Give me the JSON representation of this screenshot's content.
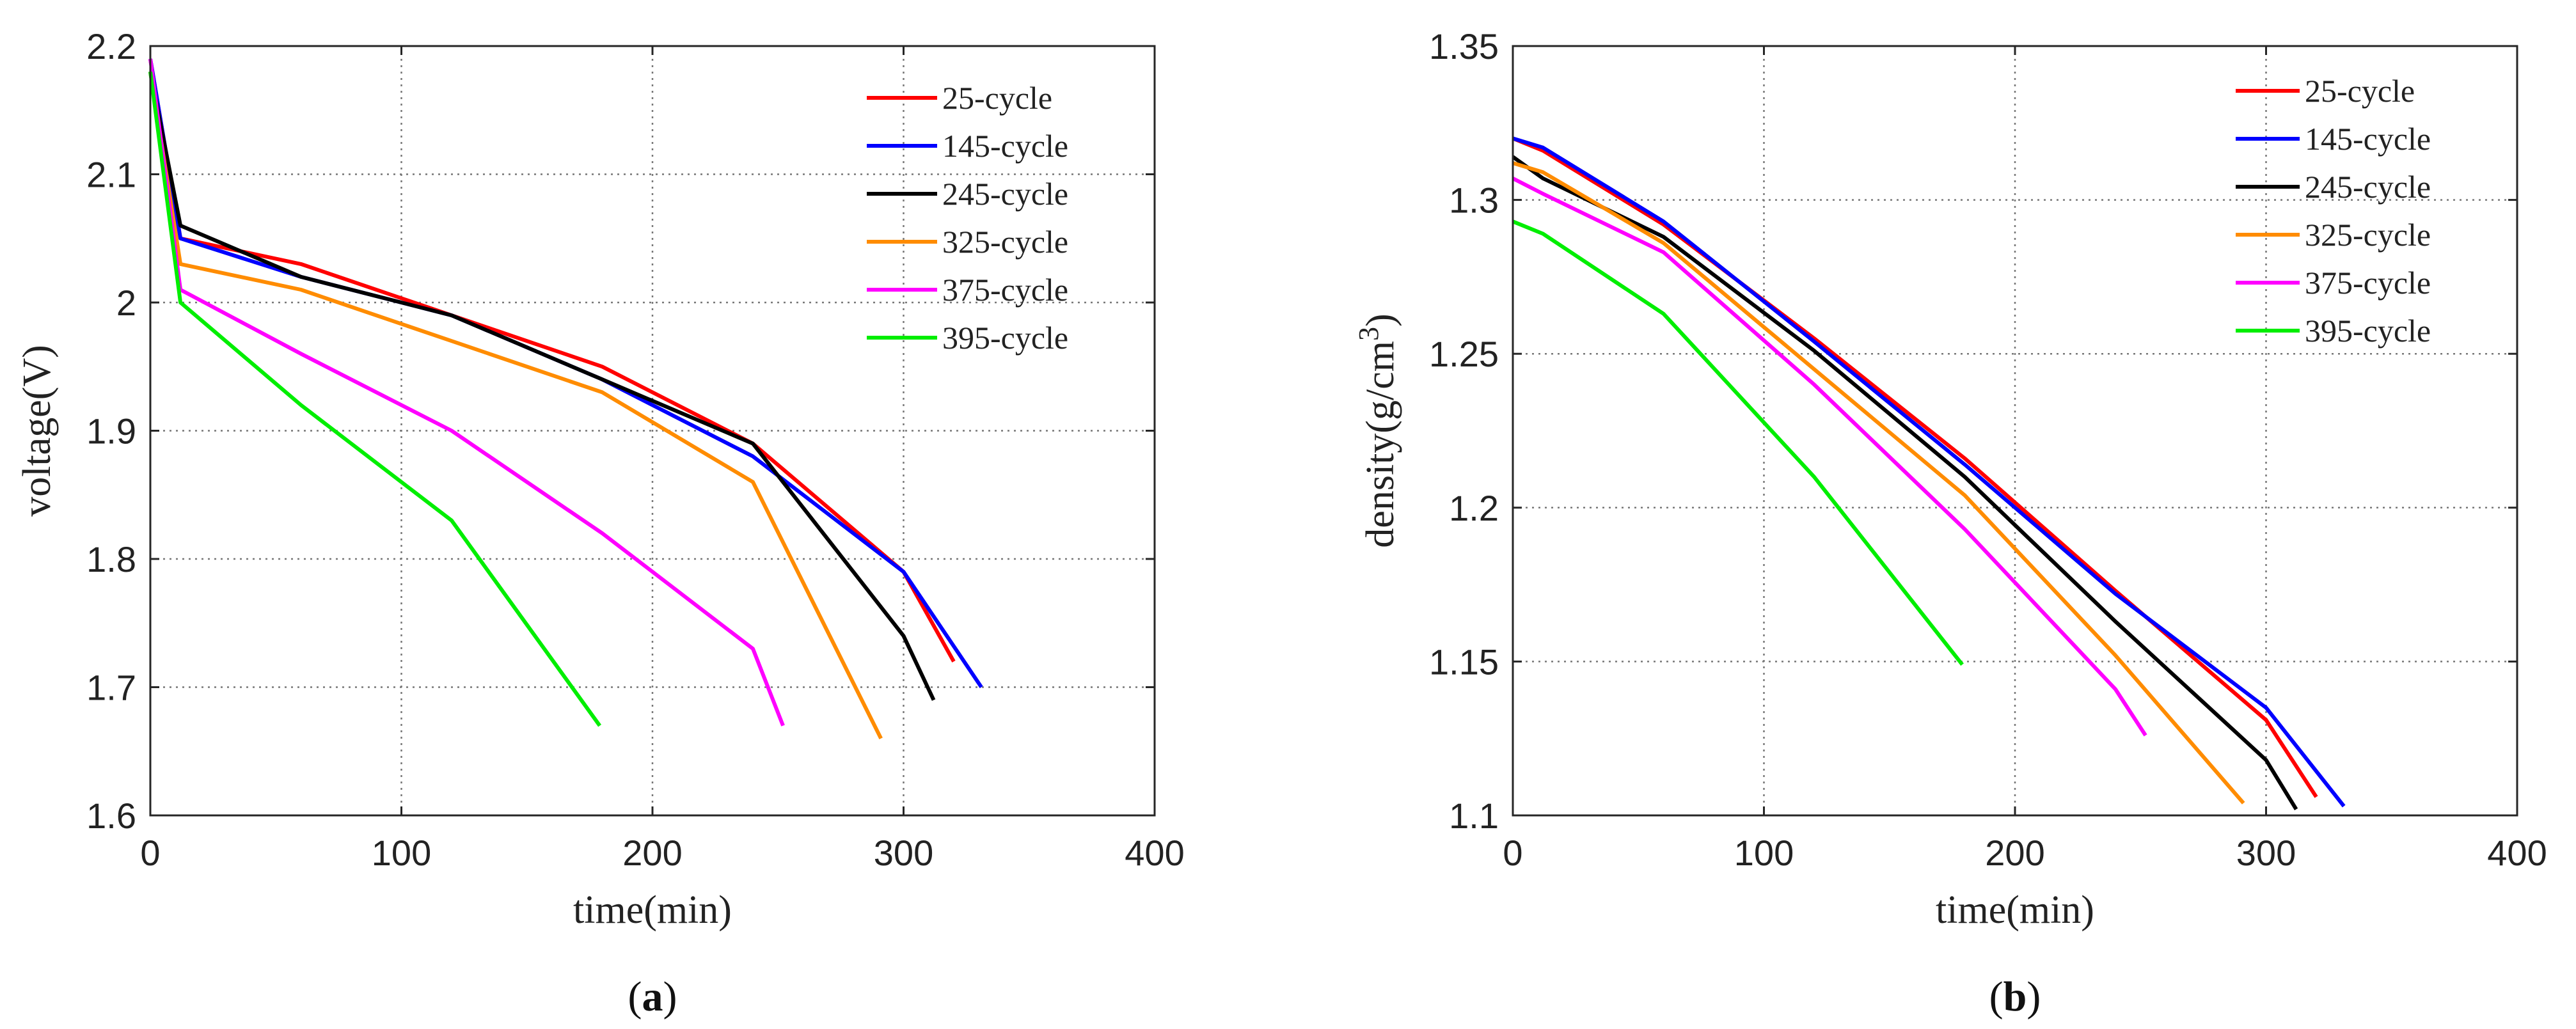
{
  "chart_data": [
    {
      "id": "a",
      "type": "line",
      "caption": {
        "open": "(",
        "letter": "a",
        "close": ")"
      },
      "xlabel": "time(min)",
      "ylabel": "voltage(V)",
      "ylabel_parts": {
        "main": "voltage(V)",
        "sup": ""
      },
      "xlim": [
        0,
        400
      ],
      "ylim": [
        1.6,
        2.2
      ],
      "xticks": [
        0,
        100,
        200,
        300,
        400
      ],
      "xtick_labels": [
        "0",
        "100",
        "200",
        "300",
        "400"
      ],
      "yticks": [
        1.6,
        1.7,
        1.8,
        1.9,
        2.0,
        2.1,
        2.2
      ],
      "ytick_labels": [
        "1.6",
        "1.7",
        "1.8",
        "1.9",
        "2",
        "2.1",
        "2.2"
      ],
      "grid": true,
      "legend": "top-right",
      "series": [
        {
          "name": "25-cycle",
          "color": "#ff0000",
          "points": [
            [
              0,
              2.19
            ],
            [
              12,
              2.05
            ],
            [
              60,
              2.03
            ],
            [
              120,
              1.99
            ],
            [
              180,
              1.95
            ],
            [
              240,
              1.89
            ],
            [
              300,
              1.79
            ],
            [
              320,
              1.72
            ]
          ]
        },
        {
          "name": "145-cycle",
          "color": "#0000ff",
          "points": [
            [
              0,
              2.19
            ],
            [
              12,
              2.05
            ],
            [
              60,
              2.02
            ],
            [
              120,
              1.99
            ],
            [
              180,
              1.94
            ],
            [
              240,
              1.88
            ],
            [
              300,
              1.79
            ],
            [
              331,
              1.7
            ]
          ]
        },
        {
          "name": "245-cycle",
          "color": "#000000",
          "points": [
            [
              0,
              2.18
            ],
            [
              12,
              2.06
            ],
            [
              60,
              2.02
            ],
            [
              120,
              1.99
            ],
            [
              180,
              1.94
            ],
            [
              240,
              1.89
            ],
            [
              300,
              1.74
            ],
            [
              312,
              1.69
            ]
          ]
        },
        {
          "name": "325-cycle",
          "color": "#ff8c00",
          "points": [
            [
              0,
              2.18
            ],
            [
              12,
              2.03
            ],
            [
              60,
              2.01
            ],
            [
              120,
              1.97
            ],
            [
              180,
              1.93
            ],
            [
              240,
              1.86
            ],
            [
              291,
              1.66
            ]
          ]
        },
        {
          "name": "375-cycle",
          "color": "#ff00ff",
          "points": [
            [
              0,
              2.19
            ],
            [
              12,
              2.01
            ],
            [
              60,
              1.96
            ],
            [
              120,
              1.9
            ],
            [
              180,
              1.82
            ],
            [
              240,
              1.73
            ],
            [
              252,
              1.67
            ]
          ]
        },
        {
          "name": "395-cycle",
          "color": "#00ee00",
          "points": [
            [
              0,
              2.18
            ],
            [
              12,
              2.0
            ],
            [
              60,
              1.92
            ],
            [
              120,
              1.83
            ],
            [
              179,
              1.67
            ]
          ]
        }
      ]
    },
    {
      "id": "b",
      "type": "line",
      "caption": {
        "open": "(",
        "letter": "b",
        "close": ")"
      },
      "xlabel": "time(min)",
      "ylabel": "density(g/cm3)",
      "ylabel_parts": {
        "main": "density(g/cm",
        "sup": "3",
        "close": ")"
      },
      "xlim": [
        0,
        400
      ],
      "ylim": [
        1.1,
        1.35
      ],
      "xticks": [
        0,
        100,
        200,
        300,
        400
      ],
      "xtick_labels": [
        "0",
        "100",
        "200",
        "300",
        "400"
      ],
      "yticks": [
        1.1,
        1.15,
        1.2,
        1.25,
        1.3,
        1.35
      ],
      "ytick_labels": [
        "1.1",
        "1.15",
        "1.2",
        "1.25",
        "1.3",
        "1.35"
      ],
      "grid": true,
      "legend": "top-right",
      "series": [
        {
          "name": "25-cycle",
          "color": "#ff0000",
          "points": [
            [
              0,
              1.32
            ],
            [
              12,
              1.316
            ],
            [
              60,
              1.292
            ],
            [
              120,
              1.255
            ],
            [
              180,
              1.216
            ],
            [
              240,
              1.173
            ],
            [
              300,
              1.131
            ],
            [
              320,
              1.106
            ]
          ]
        },
        {
          "name": "145-cycle",
          "color": "#0000ff",
          "points": [
            [
              0,
              1.32
            ],
            [
              12,
              1.317
            ],
            [
              60,
              1.293
            ],
            [
              120,
              1.254
            ],
            [
              180,
              1.214
            ],
            [
              240,
              1.172
            ],
            [
              300,
              1.135
            ],
            [
              331,
              1.103
            ]
          ]
        },
        {
          "name": "245-cycle",
          "color": "#000000",
          "points": [
            [
              0,
              1.314
            ],
            [
              12,
              1.307
            ],
            [
              60,
              1.288
            ],
            [
              120,
              1.251
            ],
            [
              180,
              1.21
            ],
            [
              240,
              1.163
            ],
            [
              300,
              1.118
            ],
            [
              312,
              1.102
            ]
          ]
        },
        {
          "name": "325-cycle",
          "color": "#ff8c00",
          "points": [
            [
              0,
              1.312
            ],
            [
              12,
              1.309
            ],
            [
              60,
              1.286
            ],
            [
              120,
              1.245
            ],
            [
              180,
              1.204
            ],
            [
              240,
              1.152
            ],
            [
              291,
              1.104
            ]
          ]
        },
        {
          "name": "375-cycle",
          "color": "#ff00ff",
          "points": [
            [
              0,
              1.307
            ],
            [
              12,
              1.302
            ],
            [
              60,
              1.283
            ],
            [
              120,
              1.24
            ],
            [
              180,
              1.193
            ],
            [
              240,
              1.141
            ],
            [
              252,
              1.126
            ]
          ]
        },
        {
          "name": "395-cycle",
          "color": "#00ee00",
          "points": [
            [
              0,
              1.293
            ],
            [
              12,
              1.289
            ],
            [
              60,
              1.263
            ],
            [
              120,
              1.21
            ],
            [
              179,
              1.149
            ]
          ]
        }
      ]
    }
  ]
}
